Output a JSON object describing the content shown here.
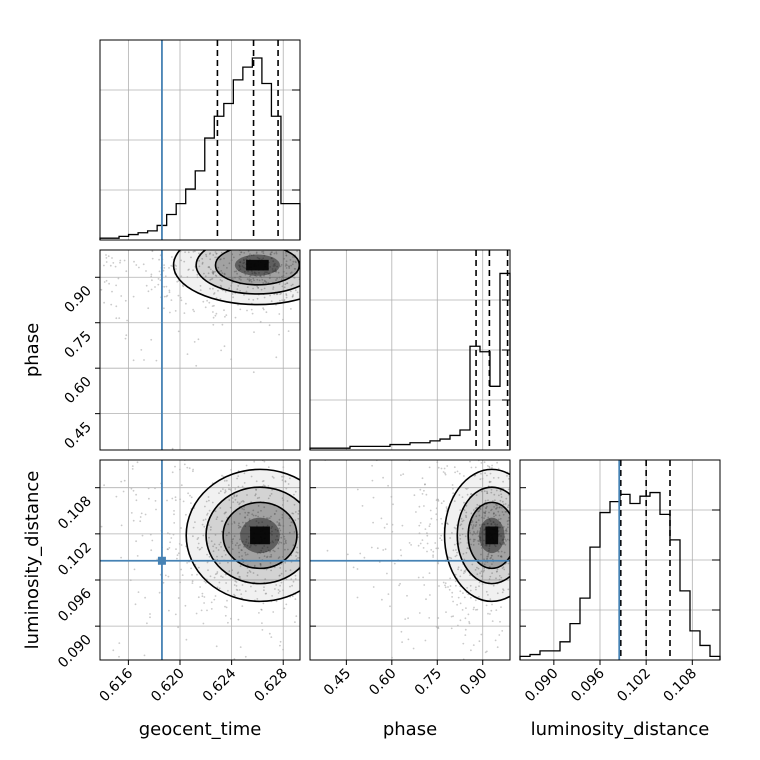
{
  "colors": {
    "truth": "#4682b4",
    "hist": "#000000",
    "grid": "#b0b0b0",
    "scatter": "#8a8a8a"
  },
  "chart_data": {
    "type": "corner",
    "parameters": [
      "geocent_time",
      "phase",
      "luminosity_distance"
    ],
    "truths": {
      "geocent_time": 0.6186,
      "phase": null,
      "luminosity_distance": 0.0985
    },
    "ranges": {
      "geocent_time": [
        0.6138,
        0.6293
      ],
      "phase": [
        0.33,
        0.99
      ],
      "luminosity_distance": [
        0.0856,
        0.1116
      ]
    },
    "ticks": {
      "geocent_time": [
        "0.616",
        "0.620",
        "0.624",
        "0.628"
      ],
      "phase": [
        "0.45",
        "0.60",
        "0.75",
        "0.90"
      ],
      "luminosity_distance": [
        "0.090",
        "0.096",
        "0.102",
        "0.108"
      ]
    },
    "quantiles": {
      "geocent_time": [
        0.6229,
        0.6257,
        0.6276
      ],
      "phase": [
        0.878,
        0.922,
        0.982
      ],
      "luminosity_distance": [
        0.0987,
        0.102,
        0.1051
      ]
    },
    "histograms": {
      "geocent_time": [
        0.01,
        0.01,
        0.02,
        0.03,
        0.04,
        0.05,
        0.08,
        0.14,
        0.2,
        0.28,
        0.38,
        0.56,
        0.68,
        0.75,
        0.88,
        0.95,
        1.0,
        0.86,
        0.68,
        0.2,
        0.2
      ],
      "phase": [
        0.01,
        0.01,
        0.01,
        0.01,
        0.02,
        0.02,
        0.02,
        0.02,
        0.03,
        0.03,
        0.04,
        0.04,
        0.05,
        0.06,
        0.08,
        0.11,
        0.57,
        0.54,
        0.35,
        0.97
      ],
      "luminosity_distance": [
        0.02,
        0.03,
        0.05,
        0.05,
        0.1,
        0.2,
        0.34,
        0.62,
        0.81,
        0.87,
        0.91,
        0.86,
        0.9,
        0.92,
        0.8,
        0.66,
        0.38,
        0.16,
        0.08,
        0.02
      ]
    },
    "scatter_density": {
      "geocent_time_vs_phase": {
        "center": [
          0.626,
          0.94
        ],
        "spread": [
          0.0025,
          0.05
        ]
      },
      "geocent_time_vs_luminosity_distance": {
        "center": [
          0.6262,
          0.1018
        ],
        "spread": [
          0.0022,
          0.0033
        ]
      },
      "phase_vs_luminosity_distance": {
        "center": [
          0.93,
          0.1018
        ],
        "spread": [
          0.06,
          0.0033
        ]
      }
    }
  }
}
